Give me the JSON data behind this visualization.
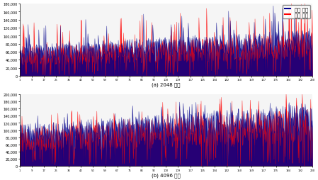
{
  "title_a": "(a) 2048 노드",
  "title_b": "(b) 4096 노드",
  "legend_proposed": "제안 기법",
  "legend_baseline": "기존 기법",
  "color_proposed": "#00008B",
  "color_baseline": "#FF0000",
  "n_points_a": 800,
  "n_points_b": 800,
  "ylim_a": [
    0,
    180000
  ],
  "ylim_b": [
    0,
    200000
  ],
  "yticks_a": [
    0,
    20000,
    40000,
    60000,
    80000,
    100000,
    120000,
    140000,
    160000,
    180000
  ],
  "yticks_b": [
    0,
    20000,
    40000,
    60000,
    80000,
    100000,
    120000,
    140000,
    160000,
    180000,
    200000
  ],
  "seed_a": 42,
  "seed_b": 99,
  "base_a": 80000,
  "base_b": 120000,
  "fig_width": 4.49,
  "fig_height": 2.55,
  "dpi": 100,
  "linewidth": 0.3,
  "tick_fontsize": 3.5,
  "label_fontsize": 5,
  "legend_fontsize": 5
}
